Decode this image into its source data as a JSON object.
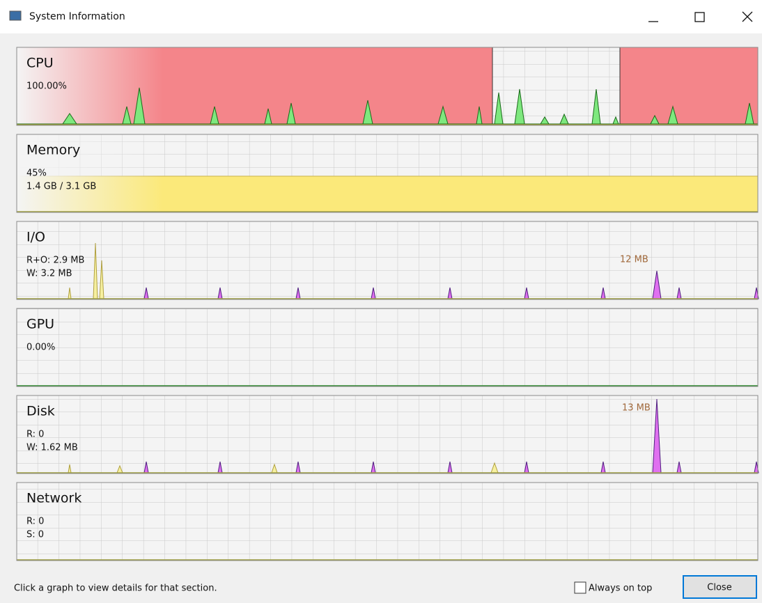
{
  "window": {
    "title": "System Information"
  },
  "panels": [
    {
      "name": "CPU",
      "lines": [
        "100.00%"
      ]
    },
    {
      "name": "Memory",
      "lines": [
        "45%",
        "1.4 GB / 3.1 GB"
      ]
    },
    {
      "name": "I/O",
      "lines": [
        "R+O: 2.9 MB",
        "W: 3.2 MB"
      ],
      "peak_label": "12 MB"
    },
    {
      "name": "GPU",
      "lines": [
        "0.00%"
      ]
    },
    {
      "name": "Disk",
      "lines": [
        "R: 0",
        "W: 1.62 MB"
      ],
      "peak_label": "13 MB"
    },
    {
      "name": "Network",
      "lines": [
        "R: 0",
        "S: 0"
      ]
    }
  ],
  "footer": {
    "hint": "Click a graph to view details for that section.",
    "always_on_top": "Always on top",
    "close": "Close"
  }
}
